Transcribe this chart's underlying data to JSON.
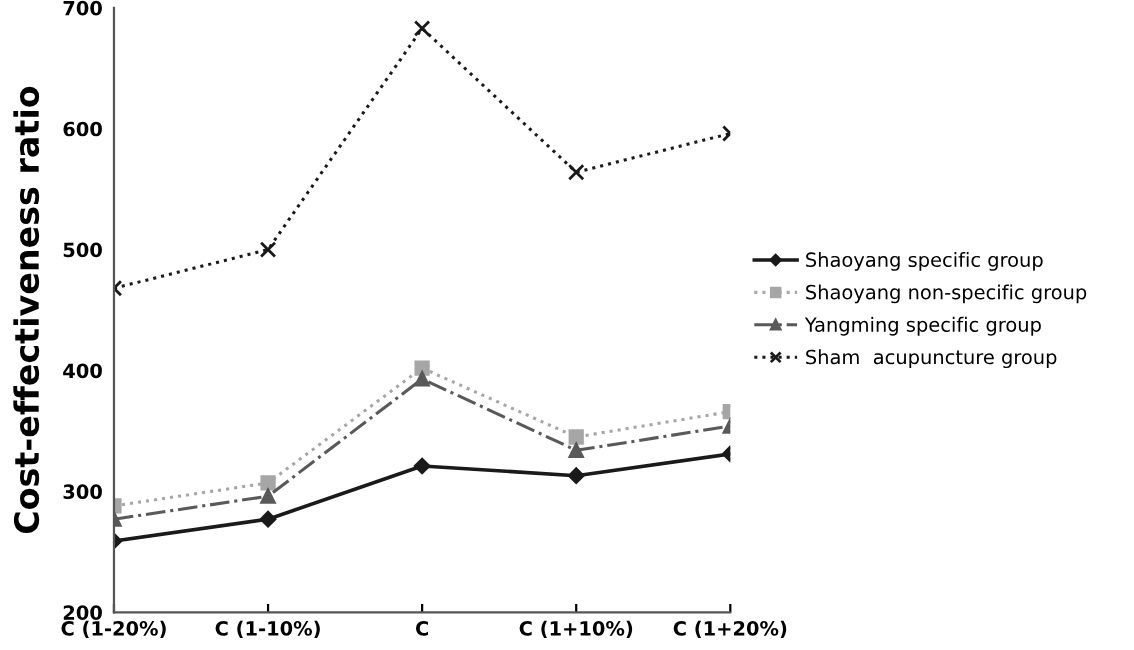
{
  "chart_data": {
    "type": "line",
    "ylabel": "Cost-effectiveness ratio",
    "categories": [
      "C (1-20%)",
      "C (1-10%)",
      "C",
      "C (1+10%)",
      "C (1+20%)"
    ],
    "series": [
      {
        "name": "Shaoyang specific group",
        "color": "#1a1a1a",
        "marker": "diamond",
        "line_style": "solid",
        "values": [
          259,
          277,
          321,
          313,
          331
        ]
      },
      {
        "name": "Shaoyang non-specific group",
        "color": "#a6a6a6",
        "marker": "square",
        "line_style": "dotted",
        "values": [
          288,
          307,
          402,
          345,
          366
        ]
      },
      {
        "name": "Yangming specific group",
        "color": "#595959",
        "marker": "triangle",
        "line_style": "dashdot",
        "values": [
          277,
          296,
          393,
          334,
          354
        ]
      },
      {
        "name": "Sham  acupuncture group",
        "color": "#1a1a1a",
        "marker": "cross",
        "line_style": "dotted",
        "values": [
          468,
          500,
          683,
          564,
          596
        ]
      }
    ],
    "ylim": [
      200,
      700
    ],
    "yticks": [
      200,
      300,
      400,
      500,
      600,
      700
    ],
    "grid": false,
    "legend": "right"
  }
}
